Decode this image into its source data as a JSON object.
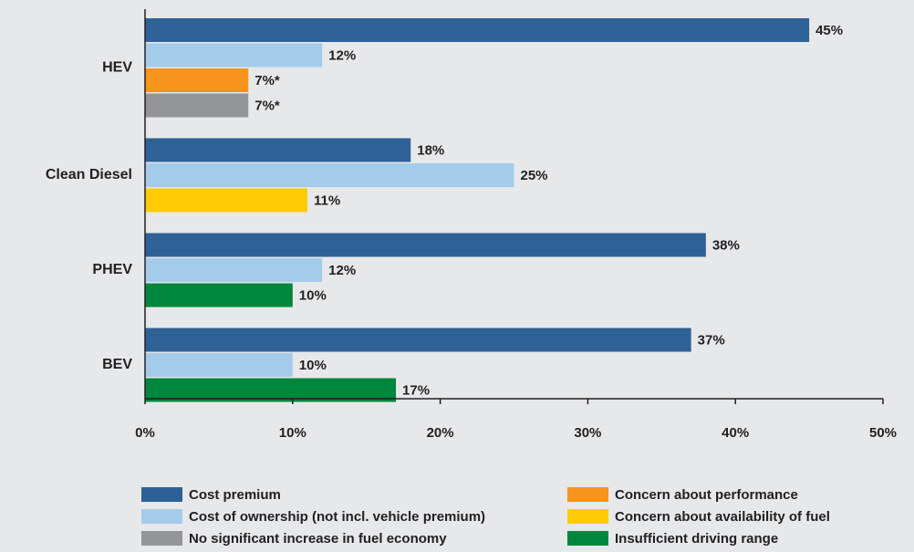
{
  "chart_data": {
    "type": "bar",
    "orientation": "horizontal",
    "categories": [
      "HEV",
      "Clean Diesel",
      "PHEV",
      "BEV"
    ],
    "series": [
      {
        "name": "Cost premium",
        "color": "#2e6196",
        "values": [
          45,
          18,
          38,
          37
        ],
        "value_labels": [
          "45%",
          "18%",
          "38%",
          "37%"
        ]
      },
      {
        "name": "Cost of ownership (not incl. vehicle premium)",
        "color": "#a5cbeb",
        "values": [
          12,
          25,
          12,
          10
        ],
        "value_labels": [
          "12%",
          "25%",
          "12%",
          "10%"
        ]
      },
      {
        "name": "Concern about performance",
        "color": "#f7941d",
        "values": [
          7,
          null,
          null,
          null
        ],
        "value_labels": [
          "7%*",
          null,
          null,
          null
        ]
      },
      {
        "name": "No significant increase in fuel economy",
        "color": "#939598",
        "values": [
          7,
          null,
          null,
          null
        ],
        "value_labels": [
          "7%*",
          null,
          null,
          null
        ]
      },
      {
        "name": "Concern about availability of fuel",
        "color": "#ffcb05",
        "values": [
          null,
          11,
          null,
          null
        ],
        "value_labels": [
          null,
          "11%",
          null,
          null
        ]
      },
      {
        "name": "Insufficient driving range",
        "color": "#00873e",
        "values": [
          null,
          null,
          10,
          17
        ],
        "value_labels": [
          null,
          null,
          "10%",
          "17%"
        ]
      }
    ],
    "xlim": [
      0,
      50
    ],
    "xticks": [
      {
        "value": 0,
        "label": "0%"
      },
      {
        "value": 10,
        "label": "10%"
      },
      {
        "value": 20,
        "label": "20%"
      },
      {
        "value": 30,
        "label": "30%"
      },
      {
        "value": 40,
        "label": "40%"
      },
      {
        "value": 50,
        "label": "50%"
      }
    ],
    "grid": false
  }
}
